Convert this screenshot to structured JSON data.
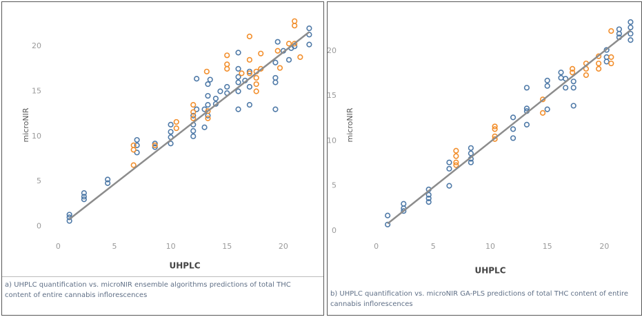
{
  "chart_data": [
    {
      "type": "scatter",
      "x_label": "UHPLC",
      "y_label": "microNIR",
      "caption": "a) UHPLC quantification vs. microNIR ensemble algorithms predictions of total THC content of entire cannabis inflorescences",
      "xlim": [
        -1,
        23.5
      ],
      "ylim": [
        -1.5,
        24
      ],
      "xticks": [
        0,
        5,
        10,
        15,
        20
      ],
      "yticks": [
        0,
        5,
        10,
        15,
        20
      ],
      "grid": false,
      "series": [
        {
          "color": "#4e79a7",
          "x": [
            1,
            1,
            1,
            2.3,
            2.3,
            2.3,
            4.4,
            4.4,
            7,
            7,
            7,
            8.6,
            8.6,
            10,
            10,
            10,
            10,
            12,
            12,
            12,
            12,
            12.3,
            12.3,
            13,
            13,
            13.3,
            13.3,
            13.3,
            13.3,
            13.5,
            14,
            14,
            14.4,
            15,
            15,
            16,
            16,
            16,
            16,
            16,
            16,
            16.6,
            17,
            17,
            17,
            19.3,
            19.3,
            19.3,
            19.3,
            19.5,
            20,
            20.5,
            20.7,
            21,
            22.3,
            22.3,
            22.3
          ],
          "values": [
            1.3,
            0.6,
            1,
            3.7,
            3.3,
            3,
            5.2,
            4.8,
            9.6,
            9,
            8.2,
            9.2,
            8.8,
            11.3,
            10.5,
            9.9,
            9.2,
            12.3,
            11.3,
            10.6,
            10,
            16.4,
            13,
            13,
            11,
            15.8,
            14.5,
            13.5,
            12.3,
            16.3,
            14.2,
            13.6,
            15,
            15.5,
            14.8,
            19.3,
            17.5,
            16.6,
            16,
            15,
            13,
            16.2,
            17.2,
            15.5,
            13.5,
            18.2,
            16.5,
            16,
            13,
            20.5,
            19.5,
            18.5,
            19.8,
            20,
            22,
            21.3,
            20.2
          ]
        },
        {
          "color": "#f28e2b",
          "x": [
            6.7,
            6.7,
            6.7,
            8.6,
            10.5,
            10.5,
            12,
            12,
            12,
            13.2,
            13.3,
            13.3,
            15,
            15,
            15,
            16.3,
            17,
            17,
            17,
            17.6,
            17.6,
            17.6,
            17.6,
            18,
            18,
            19.5,
            19.7,
            20.5,
            21,
            21,
            21,
            21.5
          ],
          "values": [
            9,
            8.5,
            6.8,
            9,
            11.6,
            10.9,
            13.5,
            12.7,
            12,
            17.2,
            12.8,
            12,
            19,
            18,
            17.5,
            17,
            21.1,
            18.5,
            17,
            17.2,
            16.5,
            15.8,
            15,
            19.2,
            17.5,
            19.5,
            17.6,
            20.3,
            22.8,
            22.3,
            20.3,
            18.8
          ]
        }
      ],
      "trend_line": {
        "color": "#8c8c8c",
        "x": [
          1,
          22.3
        ],
        "values": [
          0.8,
          21.6
        ]
      }
    },
    {
      "type": "scatter",
      "x_label": "UHPLC",
      "y_label": "microNIR",
      "caption": "b) UHPLC quantification vs. microNIR GA-PLS predictions of total THC content of entire cannabis inflorescences",
      "xlim": [
        -3,
        23
      ],
      "ylim": [
        -1,
        24.5
      ],
      "xticks": [
        0,
        5,
        10,
        15,
        20
      ],
      "yticks": [
        0,
        5,
        10,
        15,
        20
      ],
      "grid": false,
      "series": [
        {
          "color": "#4e79a7",
          "x": [
            1,
            1,
            2.4,
            2.4,
            2.4,
            4.6,
            4.6,
            4.6,
            4.6,
            6.4,
            6.4,
            6.4,
            8.3,
            8.3,
            8.3,
            8.3,
            12,
            12,
            12,
            13.2,
            13.2,
            13.2,
            13.2,
            15,
            15,
            15,
            16.2,
            16.2,
            16.6,
            16.6,
            17.3,
            17.3,
            17.3,
            20.2,
            20.2,
            20.2,
            21.3,
            21.3,
            21.3,
            22.3,
            22.3,
            22.3,
            22.3
          ],
          "values": [
            1.7,
            0.7,
            3,
            2.5,
            2.2,
            4.6,
            4,
            3.6,
            3.2,
            7.6,
            6.9,
            5,
            9.2,
            8.6,
            8,
            7.6,
            12.6,
            11.3,
            10.3,
            15.9,
            13.6,
            13.3,
            11.8,
            16.7,
            16.1,
            13.5,
            17.6,
            17,
            16.9,
            15.9,
            16.6,
            15.9,
            13.9,
            20.1,
            19.3,
            18.8,
            22.4,
            21.9,
            21.5,
            23.2,
            22.6,
            21.9,
            21.2
          ]
        },
        {
          "color": "#f28e2b",
          "x": [
            7,
            7,
            7,
            7,
            10.4,
            10.4,
            10.4,
            10.4,
            14.6,
            14.6,
            17.2,
            17.2,
            18.4,
            18.4,
            18.4,
            19.5,
            19.5,
            19.5,
            20.6,
            20.6,
            20.6
          ],
          "values": [
            8.9,
            8.3,
            7.6,
            7.3,
            11.6,
            11.3,
            10.5,
            10.2,
            14.6,
            13.1,
            18,
            17.6,
            18.6,
            18,
            17.3,
            19.4,
            18.6,
            18,
            22.2,
            19.3,
            18.6
          ]
        }
      ],
      "trend_line": {
        "color": "#8c8c8c",
        "x": [
          1,
          22.3
        ],
        "values": [
          0.8,
          22.3
        ]
      }
    }
  ]
}
